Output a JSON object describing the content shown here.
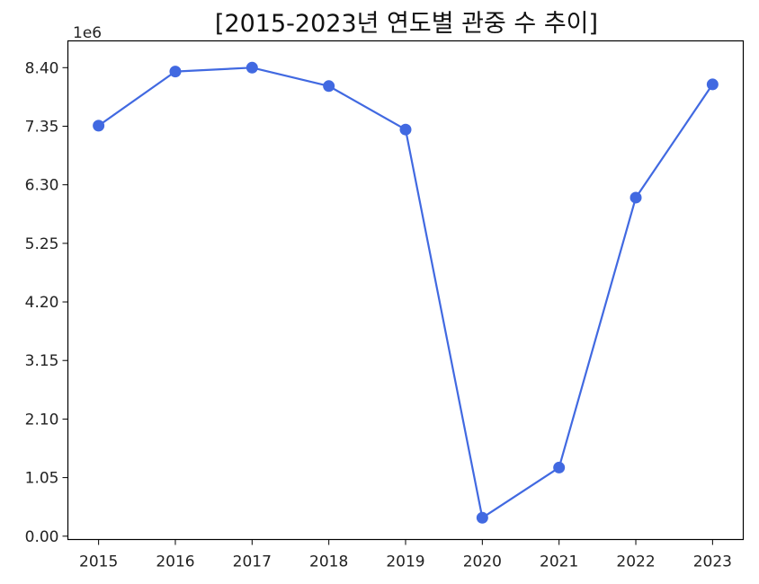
{
  "chart_data": {
    "type": "line",
    "title": "[2015-2023년 연도별 관중 수 추이]",
    "xlabel": "",
    "ylabel": "",
    "y_scale_label": "1e6",
    "x": [
      2015,
      2016,
      2017,
      2018,
      2019,
      2020,
      2021,
      2022,
      2023
    ],
    "series": [
      {
        "values": [
          7360000,
          8330000,
          8400000,
          8070000,
          7290000,
          330000,
          1230000,
          6070000,
          8100000
        ]
      }
    ],
    "x_tick_labels": [
      "2015",
      "2016",
      "2017",
      "2018",
      "2019",
      "2020",
      "2021",
      "2022",
      "2023"
    ],
    "y_ticks": [
      0,
      1050000,
      2100000,
      3150000,
      4200000,
      5250000,
      6300000,
      7350000,
      8400000
    ],
    "y_tick_labels": [
      "0.00",
      "1.05",
      "2.10",
      "3.15",
      "4.20",
      "5.25",
      "6.30",
      "7.35",
      "8.40"
    ],
    "ylim": [
      -60000,
      8880000
    ],
    "xlim": [
      2014.6,
      2023.4
    ],
    "grid": false,
    "legend": "none",
    "colors": {
      "line": "#4169E1",
      "axis": "#000000"
    }
  }
}
